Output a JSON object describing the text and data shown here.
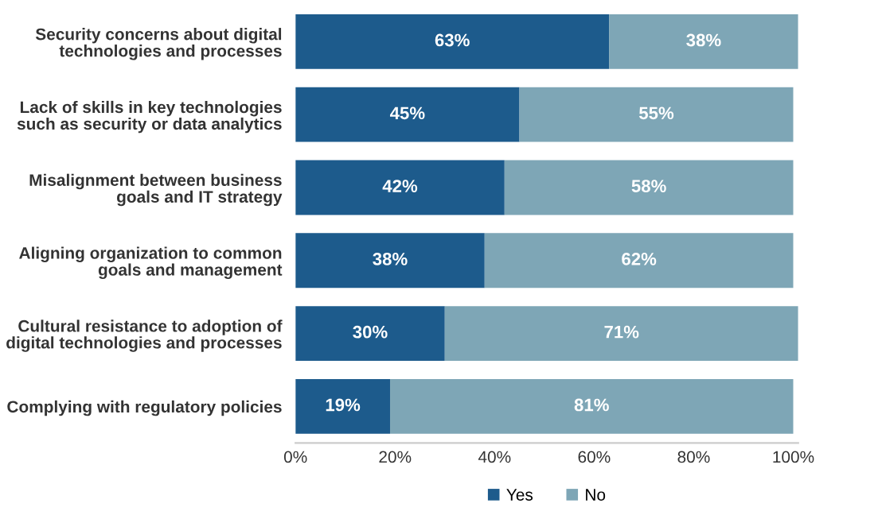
{
  "chart_data": {
    "type": "bar",
    "orientation": "horizontal",
    "stacked": true,
    "categories": [
      "Security concerns about digital\ntechnologies and processes",
      "Lack of skills in key technologies\nsuch as security or data analytics",
      "Misalignment between business\ngoals and IT strategy",
      "Aligning organization to common\ngoals and management",
      "Cultural resistance to adoption of\ndigital technologies and processes",
      "Complying with regulatory policies"
    ],
    "series": [
      {
        "name": "Yes",
        "color": "#1d5b8c",
        "values": [
          63,
          45,
          42,
          38,
          30,
          19
        ],
        "value_labels": [
          "63%",
          "45%",
          "42%",
          "38%",
          "30%",
          "19%"
        ]
      },
      {
        "name": "No",
        "color": "#7ea6b6",
        "values": [
          38,
          55,
          58,
          62,
          71,
          81
        ],
        "value_labels": [
          "38%",
          "55%",
          "58%",
          "62%",
          "71%",
          "81%"
        ]
      }
    ],
    "xlim": [
      0,
      101
    ],
    "xticks": [
      {
        "value": 0,
        "label": "0%"
      },
      {
        "value": 20,
        "label": "20%"
      },
      {
        "value": 40,
        "label": "40%"
      },
      {
        "value": 60,
        "label": "60%"
      },
      {
        "value": 80,
        "label": "80%"
      },
      {
        "value": 100,
        "label": "100%"
      }
    ],
    "grid": false,
    "legend": "bottom"
  }
}
